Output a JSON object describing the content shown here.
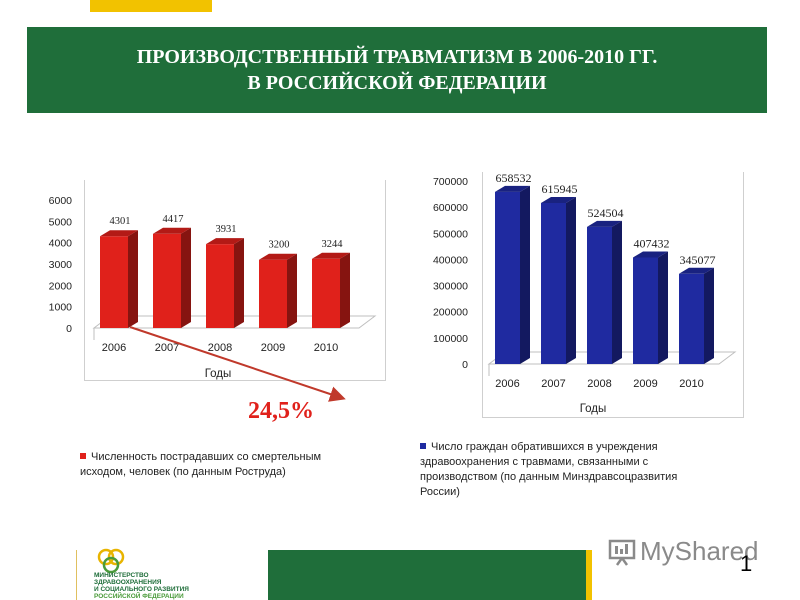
{
  "title_line1": "ПРОИЗВОДСТВЕННЫЙ ТРАВМАТИЗМ В 2006-2010 ГГ.",
  "title_line2": "В РОССИЙСКОЙ ФЕДЕРАЦИИ",
  "change_percent": "24,5%",
  "colors": {
    "green": "#1f6e3a",
    "yellow": "#f2c200",
    "red": "#e0211b",
    "blue": "#1f2aa0"
  },
  "chart_data": [
    {
      "type": "bar",
      "categories": [
        "2006",
        "2007",
        "2008",
        "2009",
        "2010"
      ],
      "values": [
        4301,
        4417,
        3931,
        3200,
        3244
      ],
      "xlabel": "Годы",
      "ylim": [
        0,
        6000
      ],
      "yticks": [
        "0",
        "1000",
        "2000",
        "3000",
        "4000",
        "5000",
        "6000"
      ],
      "legend": "Численность пострадавших со смертельным исходом, человек (по данным Роструда)",
      "color": "#e0211b"
    },
    {
      "type": "bar",
      "categories": [
        "2006",
        "2007",
        "2008",
        "2009",
        "2010"
      ],
      "values": [
        658532,
        615945,
        524504,
        407432,
        345077
      ],
      "xlabel": "Годы",
      "ylim": [
        0,
        700000
      ],
      "yticks": [
        "0",
        "100000",
        "200000",
        "300000",
        "400000",
        "500000",
        "600000",
        "700000"
      ],
      "legend": "Число граждан обратившихся в учреждения здравоохранения с травмами, связанными с производством  (по данным Минздравсоцразвития России)",
      "color": "#1f2aa0"
    }
  ],
  "logo": {
    "line1": "МИНИСТЕРСТВО",
    "line2": "ЗДРАВООХРАНЕНИЯ",
    "line3": "И СОЦИАЛЬНОГО РАЗВИТИЯ",
    "line4": "РОССИЙСКОЙ ФЕДЕРАЦИИ"
  },
  "watermark": "MyShared",
  "page_number": "1"
}
